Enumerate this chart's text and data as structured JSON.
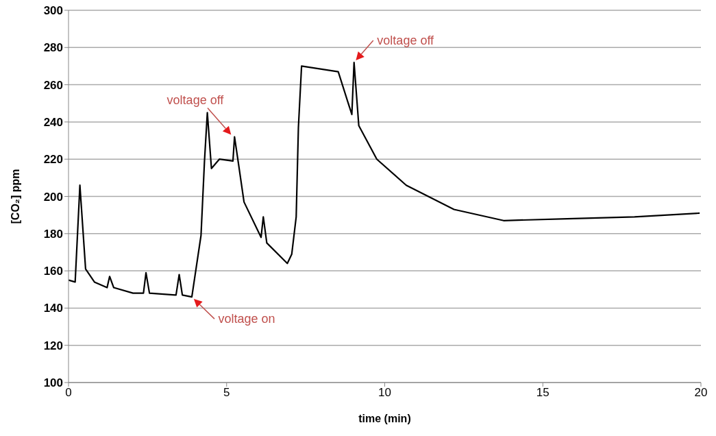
{
  "chart_data": {
    "type": "line",
    "xlabel": "time (min)",
    "ylabel": "[CO₂] ppm",
    "xlim": [
      0,
      20
    ],
    "xticks": [
      0,
      5,
      10,
      15,
      20
    ],
    "ylim": [
      100,
      300
    ],
    "yticks": [
      100,
      120,
      140,
      160,
      180,
      200,
      220,
      240,
      260,
      280,
      300
    ],
    "grid": "y",
    "marker": "none",
    "line_style": "solid",
    "series": [
      {
        "color": "#000000",
        "x": [
          0,
          0.21,
          0.36,
          0.54,
          0.82,
          1.22,
          1.3,
          1.43,
          2.04,
          2.37,
          2.45,
          2.56,
          3.4,
          3.5,
          3.6,
          3.9,
          4.19,
          4.3,
          4.39,
          4.52,
          4.77,
          5.2,
          5.25,
          5.38,
          5.55,
          6.09,
          6.16,
          6.27,
          6.92,
          7.06,
          7.2,
          7.27,
          7.37,
          8.53,
          8.96,
          9.03,
          9.18,
          9.75,
          10.68,
          12.19,
          13.76,
          15.77,
          17.9,
          19.96
        ],
        "values": [
          155,
          154,
          206,
          161,
          154,
          151,
          157,
          151,
          148,
          148,
          159,
          148,
          147,
          158,
          147,
          146,
          179,
          219,
          245,
          215,
          220,
          219,
          232,
          217,
          197,
          178,
          189,
          175,
          164,
          169,
          189,
          237,
          270,
          267,
          244,
          272,
          238,
          220,
          206,
          193,
          187,
          188,
          189,
          191
        ]
      }
    ],
    "annotations": [
      {
        "text": "voltage off",
        "x": 5.2,
        "y": 232
      },
      {
        "text": "voltage on",
        "x": 3.9,
        "y": 146
      },
      {
        "text": "voltage off",
        "x": 9.03,
        "y": 272
      }
    ]
  }
}
